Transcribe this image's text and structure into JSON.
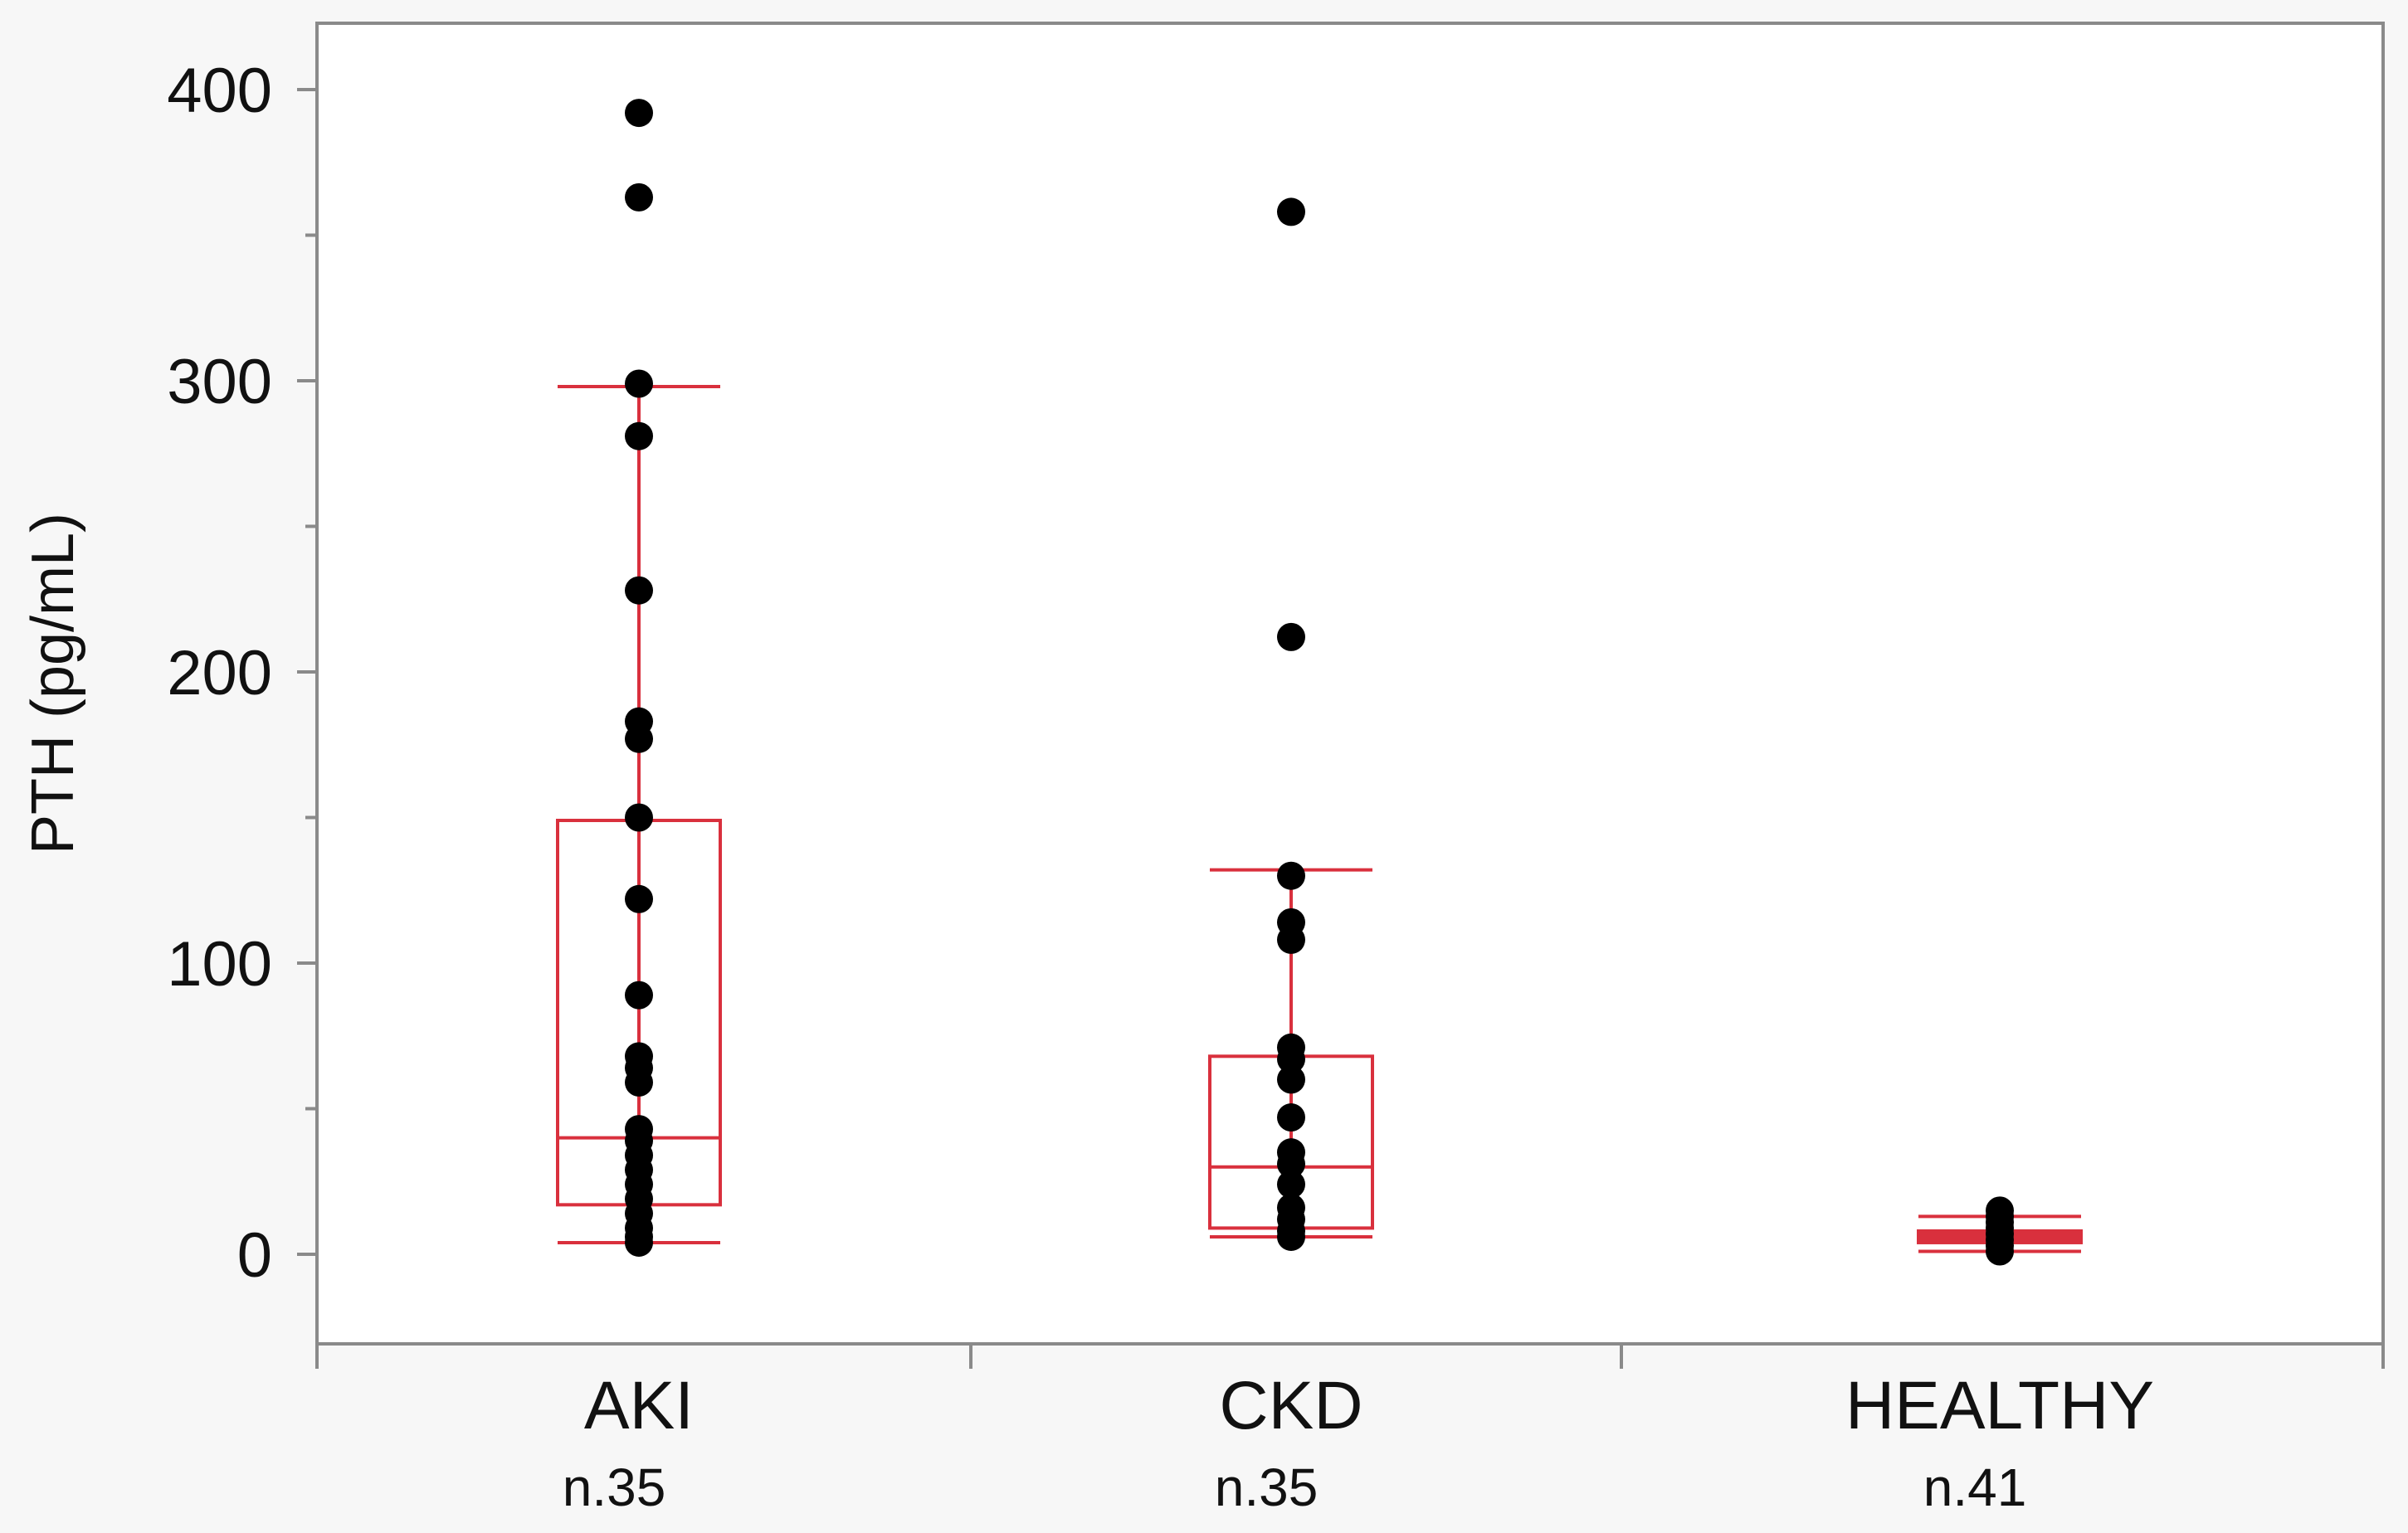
{
  "chart_data": {
    "type": "box",
    "title": "",
    "xlabel": "",
    "ylabel": "PTH (pg/mL)",
    "ylim": [
      -30,
      420
    ],
    "yticks": [
      0,
      100,
      200,
      300,
      400
    ],
    "y_minor_ticks": [
      50,
      150,
      250,
      350
    ],
    "categories": [
      "AKI",
      "CKD",
      "HEALTHY"
    ],
    "n_labels": [
      "n.35",
      "n.35",
      "n.41"
    ],
    "colors": {
      "box": "#d9303d",
      "points": "#000000",
      "axis": "#888888",
      "background": "#ffffff"
    },
    "boxes": [
      {
        "name": "AKI",
        "whisker_low": 4,
        "q1": 17,
        "median": 40,
        "q3": 149,
        "whisker_high": 298,
        "points": [
          392,
          363,
          299,
          281,
          228,
          183,
          177,
          150,
          122,
          89,
          68,
          64,
          59,
          43,
          39,
          34,
          29,
          24,
          19,
          14,
          9,
          6,
          4
        ]
      },
      {
        "name": "CKD",
        "whisker_low": 6,
        "q1": 9,
        "median": 30,
        "q3": 68,
        "whisker_high": 132,
        "points": [
          358,
          212,
          130,
          114,
          108,
          71,
          67,
          60,
          47,
          35,
          31,
          24,
          16,
          12,
          8,
          6
        ]
      },
      {
        "name": "HEALTHY",
        "whisker_low": 1,
        "q1": 4,
        "median": 6,
        "q3": 8,
        "whisker_high": 13,
        "points": [
          15,
          13,
          11,
          9,
          7,
          5,
          3,
          1
        ]
      }
    ]
  }
}
